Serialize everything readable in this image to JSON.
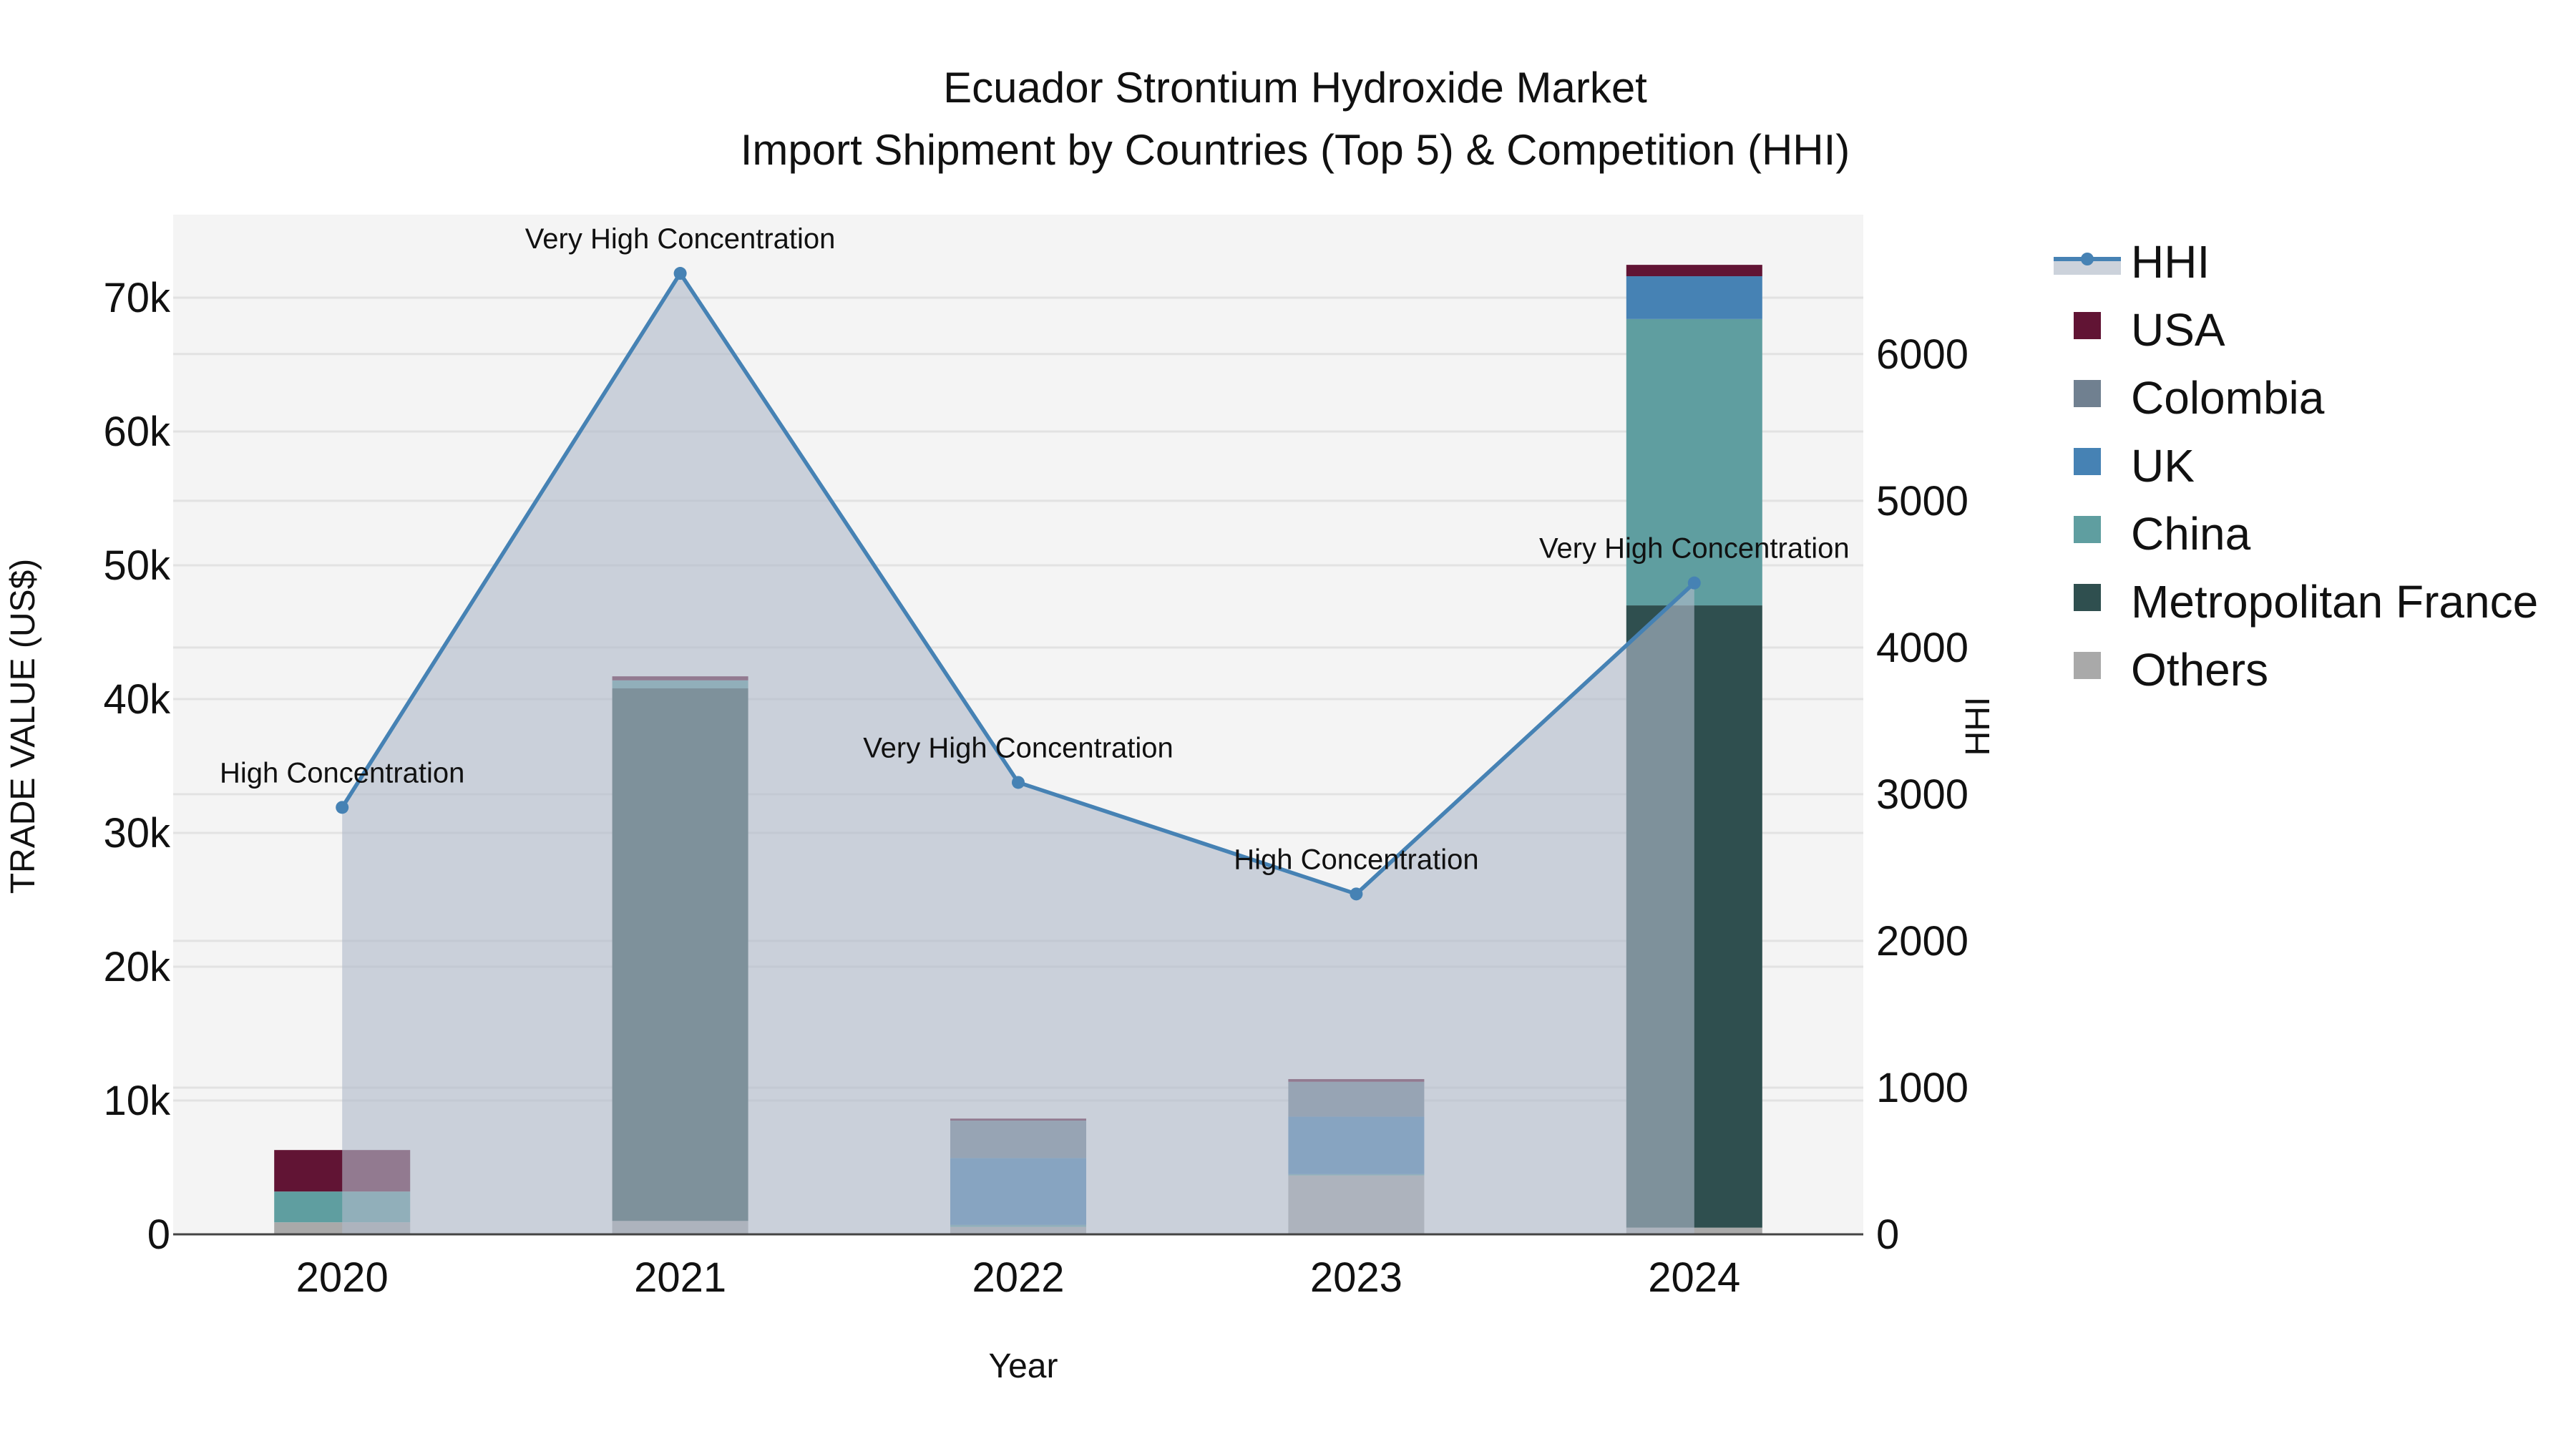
{
  "title": {
    "line1": "Ecuador Strontium Hydroxide Market",
    "line2": "Import Shipment by Countries (Top 5) & Competition (HHI)"
  },
  "axes": {
    "x_label": "Year",
    "y_label": "TRADE VALUE (US$)",
    "y2_label": "HHI",
    "y_ticks": [
      "0",
      "10k",
      "20k",
      "30k",
      "40k",
      "50k",
      "60k",
      "70k"
    ],
    "y2_ticks": [
      "0",
      "1000",
      "2000",
      "3000",
      "4000",
      "5000",
      "6000"
    ],
    "x_ticks": [
      "2020",
      "2021",
      "2022",
      "2023",
      "2024"
    ]
  },
  "legend": {
    "items": [
      {
        "label": "HHI",
        "color": "#4682b4",
        "type": "line"
      },
      {
        "label": "USA",
        "color": "#611434",
        "type": "box"
      },
      {
        "label": "Colombia",
        "color": "#708090",
        "type": "box"
      },
      {
        "label": "UK",
        "color": "#4682b4",
        "type": "box"
      },
      {
        "label": "China",
        "color": "#5f9ea0",
        "type": "box"
      },
      {
        "label": "Metropolitan France",
        "color": "#2f4f4f",
        "type": "box"
      },
      {
        "label": "Others",
        "color": "#a9a9a9",
        "type": "box"
      }
    ]
  },
  "annotations": [
    {
      "year": "2020",
      "text": "High Concentration"
    },
    {
      "year": "2021",
      "text": "Very High Concentration"
    },
    {
      "year": "2022",
      "text": "Very High Concentration"
    },
    {
      "year": "2023",
      "text": "High Concentration"
    },
    {
      "year": "2024",
      "text": "Very High Concentration"
    }
  ],
  "chart_data": {
    "type": "bar",
    "subtype": "stacked bar + line (secondary axis)",
    "title": "Ecuador Strontium Hydroxide Market — Import Shipment by Countries (Top 5) & Competition (HHI)",
    "xlabel": "Year",
    "ylabel": "TRADE VALUE (US$)",
    "y2label": "HHI",
    "categories": [
      "2020",
      "2021",
      "2022",
      "2023",
      "2024"
    ],
    "ylim": [
      0,
      76200
    ],
    "y2lim": [
      0,
      6950
    ],
    "grid": true,
    "legend_position": "right",
    "series": [
      {
        "name": "Others",
        "color": "#a9a9a9",
        "values": [
          900,
          1000,
          550,
          4400,
          500
        ]
      },
      {
        "name": "Metropolitan France",
        "color": "#2f4f4f",
        "values": [
          0,
          39800,
          0,
          0,
          46500
        ]
      },
      {
        "name": "China",
        "color": "#5f9ea0",
        "values": [
          2300,
          600,
          150,
          100,
          21400
        ]
      },
      {
        "name": "UK",
        "color": "#4682b4",
        "values": [
          0,
          0,
          5000,
          4300,
          3200
        ]
      },
      {
        "name": "Colombia",
        "color": "#708090",
        "values": [
          0,
          0,
          2800,
          2600,
          0
        ]
      },
      {
        "name": "USA",
        "color": "#611434",
        "values": [
          3100,
          300,
          150,
          200,
          850
        ]
      }
    ],
    "line_series": {
      "name": "HHI",
      "axis": "y2",
      "color": "#4682b4",
      "fill": "tozeroy",
      "values": [
        2910,
        6550,
        3080,
        2320,
        4440
      ],
      "labels": [
        "High Concentration",
        "Very High Concentration",
        "Very High Concentration",
        "High Concentration",
        "Very High Concentration"
      ]
    }
  }
}
